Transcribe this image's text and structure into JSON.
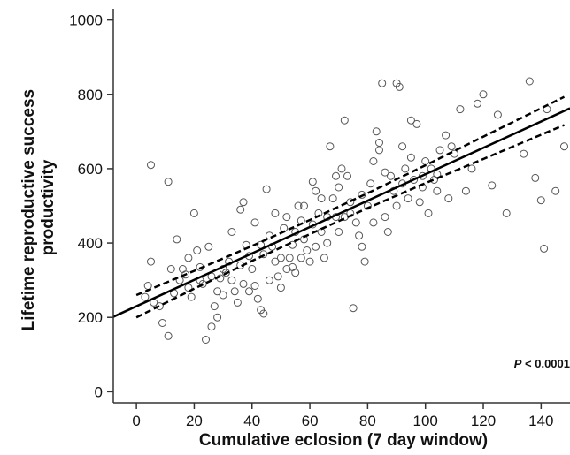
{
  "chart_data": {
    "type": "scatter",
    "xlabel": "Cumulative eclosion (7 day window)",
    "ylabel": [
      "Lifetime reproductive success",
      "productivity"
    ],
    "xlim": [
      -8,
      150
    ],
    "ylim": [
      -30,
      1030
    ],
    "xticks": [
      0,
      20,
      40,
      60,
      80,
      100,
      120,
      140
    ],
    "yticks": [
      0,
      200,
      400,
      600,
      800,
      1000
    ],
    "grid": false,
    "legend": "none",
    "annotation": {
      "p_label": "P",
      "p_rest": " < 0.0001"
    },
    "regression": {
      "slope": 3.55,
      "intercept": 230
    },
    "confidence_band": {
      "x": [
        0,
        20,
        40,
        60,
        80,
        100,
        120,
        148
      ],
      "half_width": [
        30,
        24,
        20,
        19,
        20,
        24,
        30,
        38
      ]
    },
    "colors": {
      "fit_line": "#000000",
      "points": "#555555",
      "axis": "#333333"
    },
    "points": [
      [
        5,
        610
      ],
      [
        11,
        565
      ],
      [
        5,
        350
      ],
      [
        4,
        285
      ],
      [
        3,
        255
      ],
      [
        6,
        240
      ],
      [
        8,
        230
      ],
      [
        9,
        185
      ],
      [
        11,
        150
      ],
      [
        13,
        265
      ],
      [
        15,
        300
      ],
      [
        16,
        330
      ],
      [
        17,
        315
      ],
      [
        18,
        280
      ],
      [
        19,
        255
      ],
      [
        20,
        480
      ],
      [
        21,
        380
      ],
      [
        22,
        335
      ],
      [
        23,
        290
      ],
      [
        24,
        140
      ],
      [
        26,
        175
      ],
      [
        27,
        230
      ],
      [
        28,
        200
      ],
      [
        29,
        305
      ],
      [
        30,
        260
      ],
      [
        31,
        320
      ],
      [
        32,
        350
      ],
      [
        33,
        300
      ],
      [
        34,
        270
      ],
      [
        35,
        240
      ],
      [
        36,
        490
      ],
      [
        37,
        510
      ],
      [
        38,
        395
      ],
      [
        39,
        365
      ],
      [
        40,
        330
      ],
      [
        41,
        285
      ],
      [
        42,
        250
      ],
      [
        43,
        220
      ],
      [
        44,
        210
      ],
      [
        45,
        545
      ],
      [
        46,
        420
      ],
      [
        47,
        390
      ],
      [
        48,
        350
      ],
      [
        49,
        310
      ],
      [
        50,
        280
      ],
      [
        51,
        440
      ],
      [
        52,
        470
      ],
      [
        53,
        360
      ],
      [
        54,
        335
      ],
      [
        55,
        320
      ],
      [
        56,
        500
      ],
      [
        57,
        460
      ],
      [
        58,
        410
      ],
      [
        59,
        380
      ],
      [
        60,
        350
      ],
      [
        61,
        565
      ],
      [
        62,
        540
      ],
      [
        63,
        480
      ],
      [
        64,
        430
      ],
      [
        65,
        360
      ],
      [
        66,
        400
      ],
      [
        67,
        660
      ],
      [
        68,
        520
      ],
      [
        69,
        470
      ],
      [
        70,
        430
      ],
      [
        71,
        600
      ],
      [
        72,
        730
      ],
      [
        73,
        580
      ],
      [
        74,
        510
      ],
      [
        75,
        225
      ],
      [
        76,
        455
      ],
      [
        77,
        420
      ],
      [
        78,
        390
      ],
      [
        79,
        350
      ],
      [
        80,
        500
      ],
      [
        81,
        560
      ],
      [
        82,
        620
      ],
      [
        83,
        700
      ],
      [
        84,
        670
      ],
      [
        85,
        830
      ],
      [
        86,
        470
      ],
      [
        87,
        430
      ],
      [
        88,
        580
      ],
      [
        89,
        540
      ],
      [
        90,
        830
      ],
      [
        91,
        820
      ],
      [
        92,
        660
      ],
      [
        93,
        600
      ],
      [
        94,
        520
      ],
      [
        95,
        730
      ],
      [
        96,
        570
      ],
      [
        97,
        720
      ],
      [
        98,
        510
      ],
      [
        99,
        550
      ],
      [
        100,
        620
      ],
      [
        101,
        480
      ],
      [
        102,
        600
      ],
      [
        103,
        570
      ],
      [
        104,
        585
      ],
      [
        105,
        650
      ],
      [
        107,
        690
      ],
      [
        108,
        520
      ],
      [
        109,
        660
      ],
      [
        110,
        640
      ],
      [
        112,
        760
      ],
      [
        114,
        540
      ],
      [
        116,
        600
      ],
      [
        118,
        775
      ],
      [
        120,
        800
      ],
      [
        123,
        555
      ],
      [
        125,
        745
      ],
      [
        128,
        480
      ],
      [
        134,
        640
      ],
      [
        136,
        835
      ],
      [
        138,
        575
      ],
      [
        140,
        515
      ],
      [
        141,
        385
      ],
      [
        142,
        760
      ],
      [
        145,
        540
      ],
      [
        148,
        660
      ],
      [
        12,
        330
      ],
      [
        14,
        410
      ],
      [
        18,
        360
      ],
      [
        22,
        300
      ],
      [
        25,
        390
      ],
      [
        28,
        270
      ],
      [
        33,
        430
      ],
      [
        37,
        290
      ],
      [
        41,
        455
      ],
      [
        44,
        370
      ],
      [
        48,
        480
      ],
      [
        52,
        330
      ],
      [
        55,
        430
      ],
      [
        58,
        500
      ],
      [
        62,
        390
      ],
      [
        66,
        470
      ],
      [
        70,
        550
      ],
      [
        74,
        480
      ],
      [
        78,
        530
      ],
      [
        82,
        455
      ],
      [
        86,
        590
      ],
      [
        90,
        500
      ],
      [
        95,
        630
      ],
      [
        99,
        580
      ],
      [
        104,
        540
      ],
      [
        30,
        330
      ],
      [
        46,
        300
      ],
      [
        54,
        395
      ],
      [
        64,
        520
      ],
      [
        72,
        470
      ],
      [
        36,
        340
      ],
      [
        43,
        395
      ],
      [
        57,
        360
      ],
      [
        69,
        580
      ],
      [
        84,
        650
      ],
      [
        92,
        560
      ],
      [
        26,
        310
      ],
      [
        39,
        270
      ],
      [
        50,
        360
      ],
      [
        61,
        450
      ]
    ]
  }
}
